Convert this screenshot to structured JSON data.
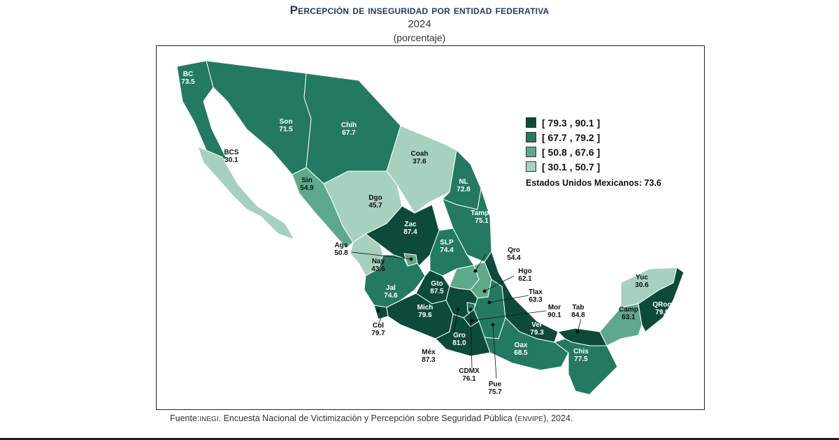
{
  "title": "Percepción de inseguridad por entidad federativa",
  "year": "2024",
  "unit": "(porcentaje)",
  "colors": {
    "class1": "#0d4a3a",
    "class2": "#237a60",
    "class3": "#5ea98c",
    "class4": "#a7d1bf",
    "outline": "#ffffff",
    "frame": "#222222",
    "title": "#1f3a5f"
  },
  "legend": [
    {
      "label": "[ 79.3 , 90.1 ]",
      "color": "#0d4a3a"
    },
    {
      "label": "[ 67.7 , 79.2 ]",
      "color": "#237a60"
    },
    {
      "label": "[ 50.8 , 67.6 ]",
      "color": "#5ea98c"
    },
    {
      "label": "[ 30.1 , 50.7 ]",
      "color": "#a7d1bf"
    }
  ],
  "national": {
    "label": "Estados Unidos Mexicanos:",
    "value": "73.6"
  },
  "source": {
    "prefix": "Fuente:",
    "org": "INEGI",
    "text": ". Encuesta Nacional de Victimización y Percepción sobre Seguridad Pública (",
    "acronym": "ENVIPE",
    "suffix": "), 2024."
  },
  "states": [
    {
      "abbr": "BC",
      "value": "73.5",
      "class": 2
    },
    {
      "abbr": "BCS",
      "value": "30.1",
      "class": 4
    },
    {
      "abbr": "Son",
      "value": "71.5",
      "class": 2
    },
    {
      "abbr": "Chih",
      "value": "67.7",
      "class": 2
    },
    {
      "abbr": "Coah",
      "value": "37.6",
      "class": 4
    },
    {
      "abbr": "NL",
      "value": "72.8",
      "class": 2
    },
    {
      "abbr": "Tamps",
      "value": "75.1",
      "class": 2
    },
    {
      "abbr": "Sin",
      "value": "54.9",
      "class": 3
    },
    {
      "abbr": "Dgo",
      "value": "45.7",
      "class": 4
    },
    {
      "abbr": "Zac",
      "value": "87.4",
      "class": 1
    },
    {
      "abbr": "SLP",
      "value": "74.4",
      "class": 2
    },
    {
      "abbr": "Nay",
      "value": "43.6",
      "class": 4
    },
    {
      "abbr": "Ags",
      "value": "50.8",
      "class": 3
    },
    {
      "abbr": "Jal",
      "value": "74.6",
      "class": 2
    },
    {
      "abbr": "Gto",
      "value": "87.5",
      "class": 1
    },
    {
      "abbr": "Qro",
      "value": "54.4",
      "class": 3
    },
    {
      "abbr": "Hgo",
      "value": "62.1",
      "class": 3
    },
    {
      "abbr": "Col",
      "value": "79.7",
      "class": 1
    },
    {
      "abbr": "Mich",
      "value": "79.6",
      "class": 1
    },
    {
      "abbr": "Méx",
      "value": "87.3",
      "class": 1
    },
    {
      "abbr": "CDMX",
      "value": "76.1",
      "class": 2
    },
    {
      "abbr": "Mor",
      "value": "90.1",
      "class": 1
    },
    {
      "abbr": "Tlax",
      "value": "63.3",
      "class": 3
    },
    {
      "abbr": "Pue",
      "value": "75.7",
      "class": 2
    },
    {
      "abbr": "Gro",
      "value": "81.0",
      "class": 1
    },
    {
      "abbr": "Ver",
      "value": "79.3",
      "class": 1
    },
    {
      "abbr": "Oax",
      "value": "68.5",
      "class": 2
    },
    {
      "abbr": "Tab",
      "value": "84.8",
      "class": 1
    },
    {
      "abbr": "Chis",
      "value": "77.5",
      "class": 2
    },
    {
      "abbr": "Camp",
      "value": "63.1",
      "class": 3
    },
    {
      "abbr": "Yuc",
      "value": "30.6",
      "class": 4
    },
    {
      "abbr": "QRoo",
      "value": "79.9",
      "class": 1
    }
  ]
}
